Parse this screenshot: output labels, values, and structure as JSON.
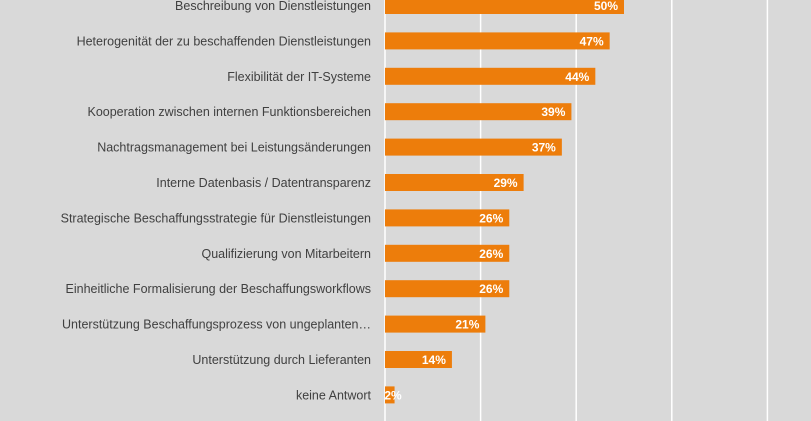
{
  "chart_data": {
    "type": "bar",
    "orientation": "horizontal",
    "categories": [
      "Beschreibung von Dienstleistungen",
      "Heterogenität der zu beschaffenden Dienstleistungen",
      "Flexibilität der IT-Systeme",
      "Kooperation zwischen internen Funktionsbereichen",
      "Nachtragsmanagement bei Leistungsänderungen",
      "Interne Datenbasis / Datentransparenz",
      "Strategische Beschaffungsstrategie für Dienstleistungen",
      "Qualifizierung von Mitarbeitern",
      "Einheitliche Formalisierung der Beschaffungsworkflows",
      "Unterstützung Beschaffungsprozess von ungeplanten…",
      "Unterstützung durch Lieferanten",
      "keine Antwort"
    ],
    "values": [
      50,
      47,
      44,
      39,
      37,
      29,
      26,
      26,
      26,
      21,
      14,
      2
    ],
    "value_labels": [
      "50%",
      "47%",
      "44%",
      "39%",
      "37%",
      "29%",
      "26%",
      "26%",
      "26%",
      "21%",
      "14%",
      "2%"
    ],
    "title": "",
    "xlabel": "",
    "ylabel": "",
    "xlim": [
      0,
      100
    ],
    "grid": true,
    "bar_color": "#ed7d0b",
    "grid_color": "#ffffff",
    "background_color": "#d9d9d9",
    "label_color": "#404040"
  }
}
